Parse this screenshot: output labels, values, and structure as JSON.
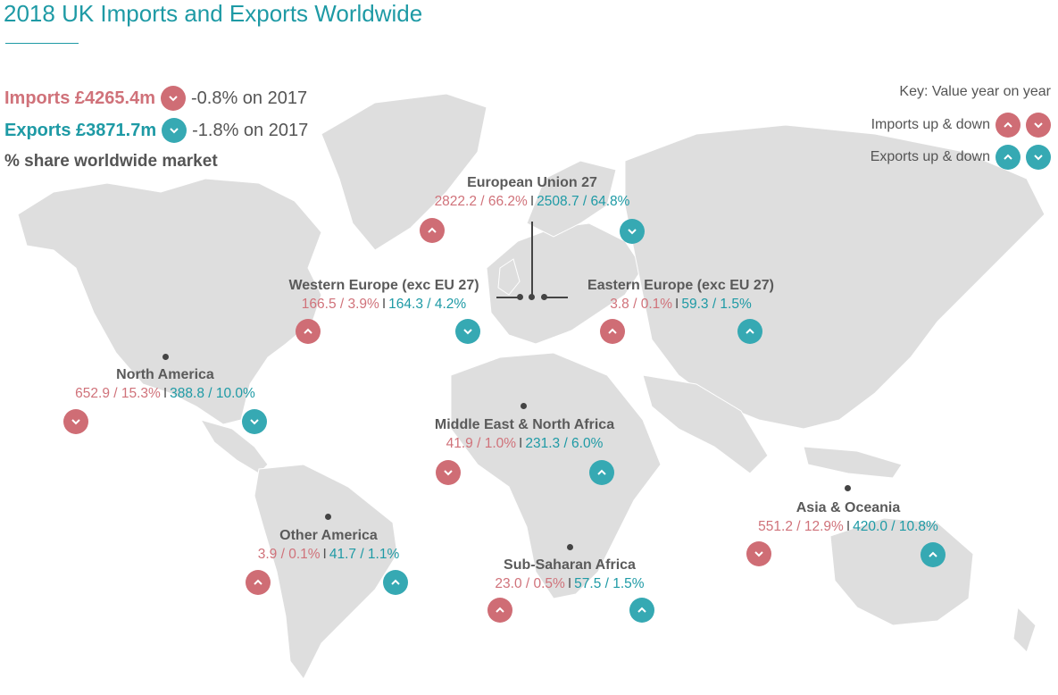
{
  "title": "2018 UK Imports and Exports Worldwide",
  "summary": {
    "imports_label": "Imports £4265.4m",
    "imports_direction": "down",
    "imports_change": "-0.8% on 2017",
    "exports_label": "Exports £3871.7m",
    "exports_direction": "down",
    "exports_change": "-1.8% on 2017",
    "share_label": "% share worldwide market"
  },
  "key": {
    "heading": "Key: Value year on year",
    "imports_label": "Imports up & down",
    "exports_label": "Exports up & down"
  },
  "colors": {
    "imports": "#cf6d75",
    "exports": "#36a9b3",
    "title": "#1e9aa5",
    "land": "#dedede"
  },
  "regions": [
    {
      "id": "eu27",
      "name": "European Union 27",
      "imports": "2822.2 / 66.2%",
      "exports": "2508.7 / 64.8%",
      "imports_trend": "up",
      "exports_trend": "down"
    },
    {
      "id": "western-europe",
      "name": "Western Europe (exc EU 27)",
      "imports": "166.5 / 3.9%",
      "exports": "164.3 / 4.2%",
      "imports_trend": "up",
      "exports_trend": "down"
    },
    {
      "id": "eastern-europe",
      "name": "Eastern Europe (exc EU 27)",
      "imports": "3.8 / 0.1%",
      "exports": "59.3 / 1.5%",
      "imports_trend": "up",
      "exports_trend": "up"
    },
    {
      "id": "north-america",
      "name": "North America",
      "imports": "652.9 / 15.3%",
      "exports": "388.8 / 10.0%",
      "imports_trend": "down",
      "exports_trend": "down"
    },
    {
      "id": "middle-east",
      "name": "Middle East & North Africa",
      "imports": "41.9 / 1.0%",
      "exports": "231.3 / 6.0%",
      "imports_trend": "down",
      "exports_trend": "up"
    },
    {
      "id": "asia-oceania",
      "name": "Asia & Oceania",
      "imports": "551.2 / 12.9%",
      "exports": "420.0 / 10.8%",
      "imports_trend": "down",
      "exports_trend": "up"
    },
    {
      "id": "other-america",
      "name": "Other America",
      "imports": "3.9 / 0.1%",
      "exports": "41.7 / 1.1%",
      "imports_trend": "up",
      "exports_trend": "up"
    },
    {
      "id": "sub-saharan",
      "name": "Sub-Saharan Africa",
      "imports": "23.0 / 0.5%",
      "exports": "57.5 / 1.5%",
      "imports_trend": "up",
      "exports_trend": "up"
    }
  ],
  "separator": "I"
}
